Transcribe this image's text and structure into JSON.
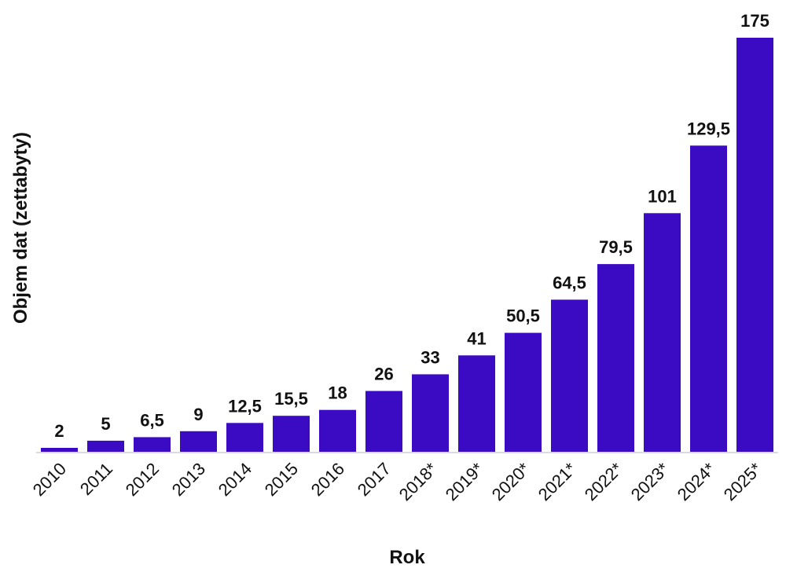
{
  "chart_data": {
    "type": "bar",
    "title": "",
    "xlabel": "Rok",
    "ylabel": "Objem dat (zettabyty)",
    "categories": [
      "2010",
      "2011",
      "2012",
      "2013",
      "2014",
      "2015",
      "2016",
      "2017",
      "2018*",
      "2019*",
      "2020*",
      "2021*",
      "2022*",
      "2023*",
      "2024*",
      "2025*"
    ],
    "values": [
      2,
      5,
      6.5,
      9,
      12.5,
      15.5,
      18,
      26,
      33,
      41,
      50.5,
      64.5,
      79.5,
      101,
      129.5,
      175
    ],
    "value_labels": [
      "2",
      "5",
      "6,5",
      "9",
      "12,5",
      "15,5",
      "18",
      "26",
      "33",
      "41",
      "50,5",
      "64,5",
      "79,5",
      "101",
      "129,5",
      "175"
    ],
    "ylim": [
      0,
      175
    ],
    "grid": false,
    "legend": "none",
    "bar_color": "#3a0bc2",
    "baseline_color": "#d9d9e8"
  }
}
